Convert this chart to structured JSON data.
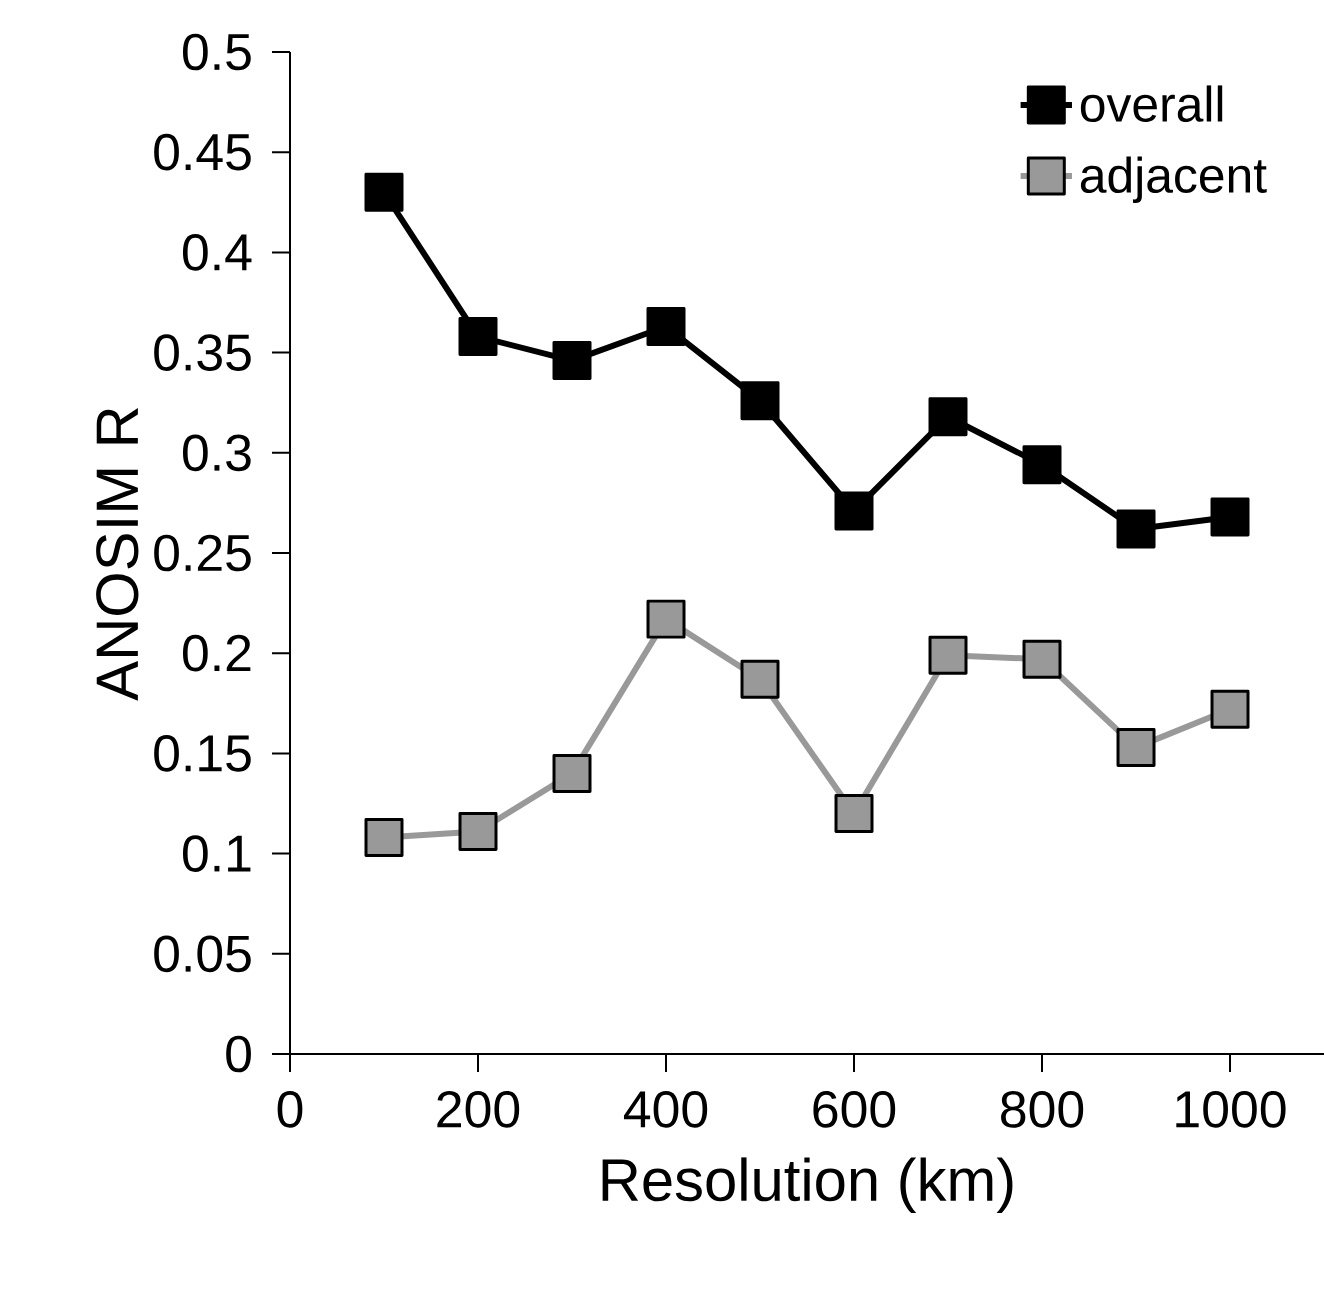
{
  "chart_data": {
    "type": "line",
    "xlabel": "Resolution (km)",
    "ylabel": "ANOSIM R",
    "x": [
      100,
      200,
      300,
      400,
      500,
      600,
      700,
      800,
      900,
      1000
    ],
    "series": [
      {
        "name": "overall",
        "color": "#000000",
        "values": [
          0.43,
          0.358,
          0.346,
          0.363,
          0.326,
          0.271,
          0.318,
          0.294,
          0.262,
          0.268
        ]
      },
      {
        "name": "adjacent",
        "color": "#999999",
        "values": [
          0.108,
          0.111,
          0.14,
          0.217,
          0.187,
          0.12,
          0.199,
          0.197,
          0.153,
          0.172
        ]
      }
    ],
    "xlim": [
      0,
      1100
    ],
    "ylim": [
      0,
      0.5
    ],
    "xticks": [
      0,
      200,
      400,
      600,
      800,
      1000
    ],
    "yticks": [
      0,
      0.05,
      0.1,
      0.15,
      0.2,
      0.25,
      0.3,
      0.35,
      0.4,
      0.45,
      0.5
    ],
    "marker": "square",
    "line_style": "solid",
    "legend": "top right",
    "grid": false
  }
}
